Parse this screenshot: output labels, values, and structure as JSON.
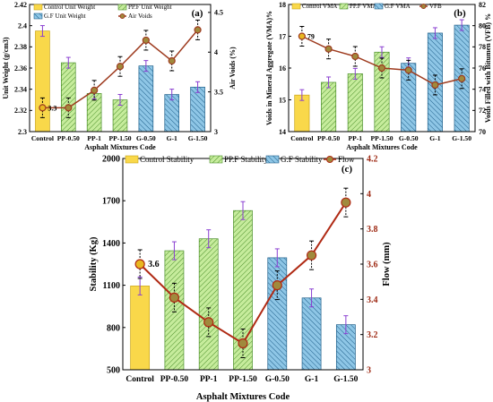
{
  "chart_data": [
    {
      "panel": "(a)",
      "type": "bar",
      "categories": [
        "Control",
        "PP-0.50",
        "PP-1",
        "PP-1.50",
        "G-0.50",
        "G-1",
        "G-1.50"
      ],
      "xlabel": "Asphalt Mixtures Code",
      "ylabel": "Unit Weight (g/cm3)",
      "y2label": "Air Voids (%)",
      "ylim": [
        2.3,
        2.42
      ],
      "yticks": [
        "2.3",
        "2.32",
        "2.34",
        "2.36",
        "2.38",
        "2.4",
        "2.42"
      ],
      "y2lim": [
        3,
        4.6
      ],
      "y2ticks": [
        "3",
        "3.5",
        "4",
        "4.5"
      ],
      "series": [
        {
          "name": "Control Unit Weight",
          "kind": "bar",
          "group": "control",
          "values": [
            2.395,
            null,
            null,
            null,
            null,
            null,
            null
          ]
        },
        {
          "name": "PP.F Unit Weight",
          "kind": "bar",
          "group": "pp",
          "values": [
            null,
            2.365,
            2.336,
            2.33,
            null,
            null,
            null
          ]
        },
        {
          "name": "G.F  Unit Weight",
          "kind": "bar",
          "group": "gf",
          "values": [
            null,
            null,
            null,
            null,
            2.362,
            2.335,
            2.342
          ]
        },
        {
          "name": "Air Voids",
          "kind": "line",
          "axis": "right",
          "values": [
            3.3,
            3.3,
            3.52,
            3.82,
            4.15,
            3.89,
            4.28
          ]
        }
      ],
      "annotations": [
        "3.3"
      ],
      "legend": "top-left",
      "colors": {
        "control": "#f9d84a",
        "pp": "#c6ec9c",
        "gf": "#8ec6e6",
        "line": "#9e3b1f",
        "marker": "#a08a3c"
      }
    },
    {
      "panel": "(b)",
      "type": "bar",
      "categories": [
        "Control",
        "PP-0.50",
        "PP-1",
        "PP-1.50",
        "G-0.50",
        "G-1",
        "G-1.50"
      ],
      "xlabel": "Asphalt Mixtures Code",
      "ylabel": "Voids in Mineral Aggregate (VMA)%",
      "y2label": "Voids Filled with Bitumen (VFB) %",
      "ylim": [
        14,
        18
      ],
      "yticks": [
        "14",
        "15",
        "16",
        "17",
        "18"
      ],
      "y2lim": [
        70,
        82
      ],
      "y2ticks": [
        "70",
        "72",
        "74",
        "76",
        "78",
        "80",
        "82"
      ],
      "series": [
        {
          "name": "Control VMA",
          "kind": "bar",
          "group": "control",
          "values": [
            15.15,
            null,
            null,
            null,
            null,
            null,
            null
          ]
        },
        {
          "name": "PP.F VMA",
          "kind": "bar",
          "group": "pp",
          "values": [
            null,
            15.55,
            15.82,
            16.5,
            null,
            null,
            null
          ]
        },
        {
          "name": "G.F VMA",
          "kind": "bar",
          "group": "gf",
          "values": [
            null,
            null,
            null,
            null,
            16.15,
            17.1,
            17.35
          ]
        },
        {
          "name": "VFB",
          "kind": "line",
          "axis": "right",
          "values": [
            79.0,
            77.8,
            77.1,
            76.0,
            75.8,
            74.4,
            75.0
          ]
        }
      ],
      "annotations": [
        "79"
      ],
      "legend": "top",
      "colors": {
        "control": "#f9d84a",
        "pp": "#c6ec9c",
        "gf": "#8ec6e6",
        "line": "#9e3b1f",
        "marker": "#a08a3c"
      }
    },
    {
      "panel": "(c)",
      "type": "bar",
      "categories": [
        "Control",
        "PP-0.50",
        "PP-1",
        "PP-1.50",
        "G-0.50",
        "G-1",
        "G-1.50"
      ],
      "xlabel": "Asphalt Mixtures Code",
      "ylabel": "Stability (Kg)",
      "y2label": "Flow (mm)",
      "ylim": [
        500,
        2000
      ],
      "yticks": [
        "500",
        "800",
        "1100",
        "1400",
        "1700",
        "2000"
      ],
      "y2lim": [
        3,
        4.2
      ],
      "y2ticks": [
        "3",
        "3.2",
        "3.4",
        "3.6",
        "3.8",
        "4",
        "4.2"
      ],
      "series": [
        {
          "name": "Control  Stability",
          "kind": "bar",
          "group": "control",
          "values": [
            1095,
            null,
            null,
            null,
            null,
            null,
            null
          ]
        },
        {
          "name": "PP.F Stability",
          "kind": "bar",
          "group": "pp",
          "values": [
            null,
            1345,
            1430,
            1630,
            null,
            null,
            null
          ]
        },
        {
          "name": "G.F  Stability",
          "kind": "bar",
          "group": "gf",
          "values": [
            null,
            null,
            null,
            null,
            1295,
            1010,
            820
          ]
        },
        {
          "name": "Flow",
          "kind": "line",
          "axis": "right",
          "values": [
            3.6,
            3.41,
            3.27,
            3.15,
            3.48,
            3.65,
            3.95
          ]
        }
      ],
      "annotations": [
        "3.6"
      ],
      "legend": "top",
      "colors": {
        "control": "#f9d84a",
        "pp": "#c6ec9c",
        "gf": "#8ec6e6",
        "line": "#b02a14",
        "marker": "#a08a3c"
      }
    }
  ]
}
